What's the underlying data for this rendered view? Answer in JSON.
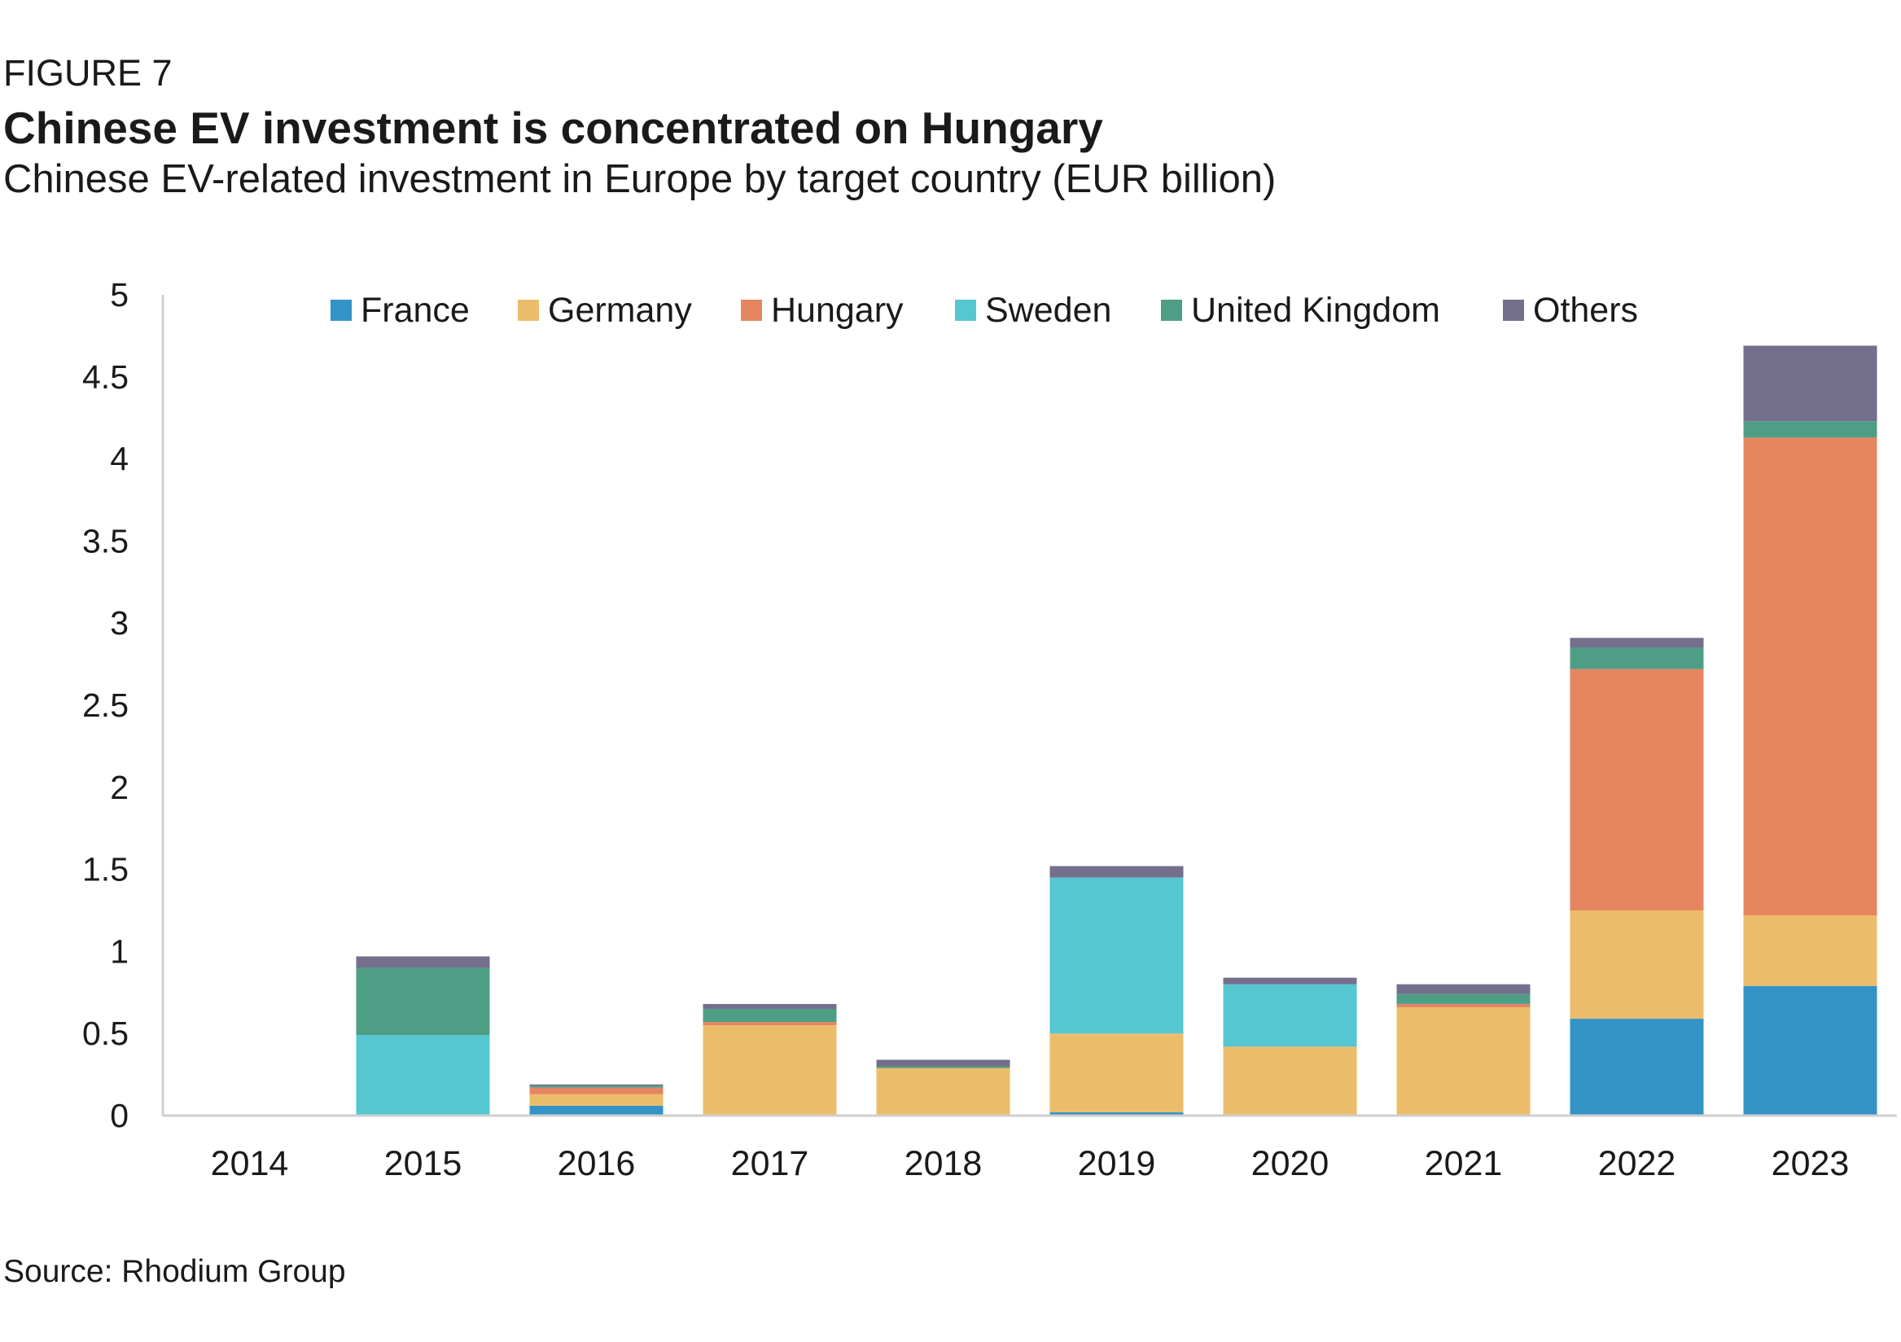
{
  "figure_label": "FIGURE 7",
  "title": "Chinese EV investment is concentrated on Hungary",
  "subtitle": "Chinese EV-related investment in Europe by target country (EUR billion)",
  "source": "Source: Rhodium Group",
  "chart_data": {
    "type": "bar",
    "stacked": true,
    "categories": [
      "2014",
      "2015",
      "2016",
      "2017",
      "2018",
      "2019",
      "2020",
      "2021",
      "2022",
      "2023"
    ],
    "ylim": [
      0,
      5
    ],
    "yticks": [
      0,
      0.5,
      1,
      1.5,
      2,
      2.5,
      3,
      3.5,
      4,
      4.5,
      5
    ],
    "ytick_labels": [
      "0",
      "0.5",
      "1",
      "1.5",
      "2",
      "2.5",
      "3",
      "3.5",
      "4",
      "4.5",
      "5"
    ],
    "grid": false,
    "legend_position": "top",
    "series": [
      {
        "name": "France",
        "color": "#3393c7",
        "values": [
          0,
          0,
          0.06,
          0,
          0,
          0.02,
          0,
          0,
          0.59,
          0.79
        ]
      },
      {
        "name": "Germany",
        "color": "#ebbd6b",
        "values": [
          0,
          0,
          0.07,
          0.55,
          0.29,
          0.48,
          0.42,
          0.66,
          0.66,
          0.43
        ]
      },
      {
        "name": "Hungary",
        "color": "#e5855f",
        "values": [
          0,
          0,
          0.04,
          0.02,
          0,
          0,
          0,
          0.02,
          1.47,
          2.91
        ]
      },
      {
        "name": "Sweden",
        "color": "#55c7d0",
        "values": [
          0,
          0.49,
          0,
          0,
          0,
          0.95,
          0.38,
          0,
          0,
          0
        ]
      },
      {
        "name": "United Kingdom",
        "color": "#4e9e86",
        "values": [
          0,
          0.41,
          0.01,
          0.08,
          0.01,
          0,
          0,
          0.06,
          0.13,
          0.1
        ]
      },
      {
        "name": "Others",
        "color": "#736f8c",
        "values": [
          0,
          0.07,
          0.01,
          0.03,
          0.04,
          0.07,
          0.04,
          0.06,
          0.06,
          0.46
        ]
      }
    ]
  }
}
